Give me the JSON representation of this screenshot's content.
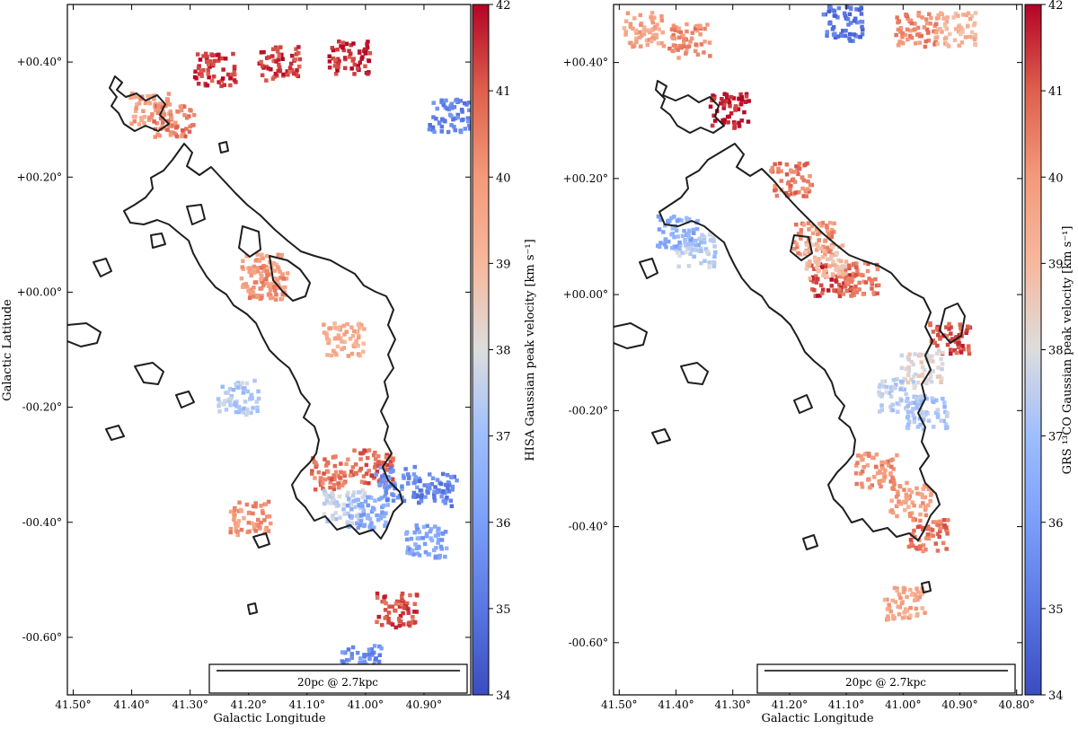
{
  "colormap": {
    "low": "#3b4cc0",
    "mid": "#dddddd",
    "high": "#b40426",
    "contour": "#1e1e1e"
  },
  "chart_data": [
    {
      "type": "heatmap",
      "title": "",
      "xlabel": "Galactic Longitude",
      "ylabel": "Galactic Latitude",
      "xlim": [
        41.51,
        40.82
      ],
      "ylim": [
        -0.7,
        0.5
      ],
      "xticks": [
        41.5,
        41.4,
        41.3,
        41.2,
        41.1,
        41.0,
        40.9
      ],
      "xtick_labels": [
        "41.50°",
        "41.40°",
        "41.30°",
        "41.20°",
        "41.10°",
        "41.00°",
        "40.90°"
      ],
      "yticks": [
        0.4,
        0.2,
        0.0,
        -0.2,
        -0.4,
        -0.6
      ],
      "ytick_labels": [
        "+00.40°",
        "+00.20°",
        "+00.00°",
        "-00.20°",
        "-00.40°",
        "-00.60°"
      ],
      "colorbar": {
        "label": "HISA Gaussian peak velocity [km s⁻¹]",
        "min": 34,
        "max": 42,
        "ticks": [
          34,
          35,
          36,
          37,
          38,
          39,
          40,
          41,
          42
        ],
        "tick_labels": [
          "34",
          "35",
          "36",
          "37",
          "38",
          "39",
          "40",
          "41",
          "42"
        ]
      },
      "scalebar_label": "20pc @ 2.7kpc",
      "patches": [
        {
          "l": 41.37,
          "b": 0.32,
          "v": 39.8
        },
        {
          "l": 41.33,
          "b": 0.3,
          "v": 40.5
        },
        {
          "l": 41.26,
          "b": 0.39,
          "v": 41.5
        },
        {
          "l": 41.03,
          "b": 0.41,
          "v": 41.6
        },
        {
          "l": 41.15,
          "b": 0.4,
          "v": 41.4
        },
        {
          "l": 41.18,
          "b": 0.04,
          "v": 39.7
        },
        {
          "l": 41.17,
          "b": 0.02,
          "v": 40.2
        },
        {
          "l": 41.04,
          "b": -0.08,
          "v": 39.5
        },
        {
          "l": 41.22,
          "b": -0.18,
          "v": 37.3
        },
        {
          "l": 41.06,
          "b": -0.31,
          "v": 40.6
        },
        {
          "l": 40.99,
          "b": -0.3,
          "v": 40.9
        },
        {
          "l": 41.04,
          "b": -0.37,
          "v": 37.6
        },
        {
          "l": 41.0,
          "b": -0.38,
          "v": 36.3
        },
        {
          "l": 40.95,
          "b": -0.33,
          "v": 35.6
        },
        {
          "l": 40.88,
          "b": -0.34,
          "v": 35.3
        },
        {
          "l": 41.2,
          "b": -0.39,
          "v": 40.0
        },
        {
          "l": 40.86,
          "b": 0.31,
          "v": 35.4
        },
        {
          "l": 40.9,
          "b": -0.43,
          "v": 36.1
        },
        {
          "l": 41.01,
          "b": -0.64,
          "v": 35.6
        },
        {
          "l": 40.95,
          "b": -0.55,
          "v": 41.2
        }
      ]
    },
    {
      "type": "heatmap",
      "title": "",
      "xlabel": "Galactic Longitude",
      "ylabel": "",
      "xlim": [
        41.51,
        40.79
      ],
      "ylim": [
        -0.69,
        0.5
      ],
      "xticks": [
        41.5,
        41.4,
        41.3,
        41.2,
        41.1,
        41.0,
        40.9,
        40.8
      ],
      "xtick_labels": [
        "41.50°",
        "41.40°",
        "41.30°",
        "41.20°",
        "41.10°",
        "41.00°",
        "40.90°",
        "40.80°"
      ],
      "yticks": [
        0.4,
        0.2,
        0.0,
        -0.2,
        -0.4,
        -0.6
      ],
      "ytick_labels": [
        "+00.40°",
        "+00.20°",
        "+00.00°",
        "-00.20°",
        "-00.40°",
        "-00.60°"
      ],
      "colorbar": {
        "label": "GRS ¹³CO Gaussian peak velocity [km s⁻¹]",
        "min": 34,
        "max": 42,
        "ticks": [
          34,
          35,
          36,
          37,
          38,
          39,
          40,
          41,
          42
        ],
        "tick_labels": [
          "34",
          "35",
          "36",
          "37",
          "38",
          "39",
          "40",
          "41",
          "42"
        ]
      },
      "scalebar_label": "20pc @ 2.7kpc",
      "patches": [
        {
          "l": 41.46,
          "b": 0.46,
          "v": 39.6
        },
        {
          "l": 41.38,
          "b": 0.44,
          "v": 40.3
        },
        {
          "l": 41.31,
          "b": 0.32,
          "v": 41.8
        },
        {
          "l": 41.2,
          "b": 0.2,
          "v": 40.6
        },
        {
          "l": 41.16,
          "b": 0.1,
          "v": 40.2
        },
        {
          "l": 41.13,
          "b": 0.03,
          "v": 41.4
        },
        {
          "l": 41.08,
          "b": 0.03,
          "v": 40.6
        },
        {
          "l": 41.37,
          "b": 0.08,
          "v": 37.4
        },
        {
          "l": 41.4,
          "b": 0.11,
          "v": 36.5
        },
        {
          "l": 40.92,
          "b": -0.07,
          "v": 41.2
        },
        {
          "l": 40.97,
          "b": -0.12,
          "v": 38.2
        },
        {
          "l": 41.01,
          "b": -0.17,
          "v": 37.5
        },
        {
          "l": 40.96,
          "b": -0.2,
          "v": 37.2
        },
        {
          "l": 41.05,
          "b": -0.3,
          "v": 40.2
        },
        {
          "l": 40.99,
          "b": -0.35,
          "v": 39.8
        },
        {
          "l": 40.96,
          "b": -0.41,
          "v": 40.7
        },
        {
          "l": 41.0,
          "b": -0.53,
          "v": 39.6
        },
        {
          "l": 41.14,
          "b": 0.06,
          "v": 39.0
        },
        {
          "l": 41.11,
          "b": 0.47,
          "v": 35.0
        },
        {
          "l": 40.98,
          "b": 0.46,
          "v": 40.3
        },
        {
          "l": 40.91,
          "b": 0.46,
          "v": 39.2
        }
      ]
    }
  ]
}
